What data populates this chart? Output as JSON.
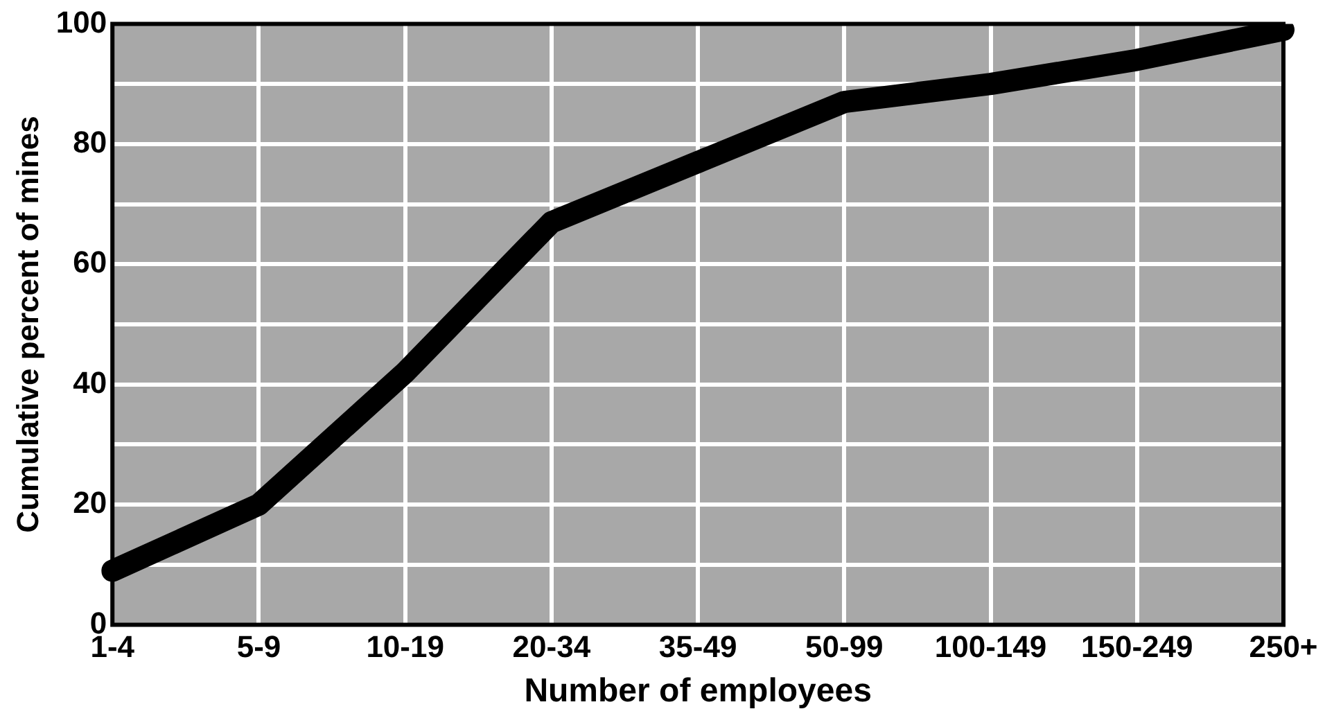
{
  "chart_data": {
    "type": "line",
    "xlabel": "Number of employees",
    "ylabel": "Cumulative percent of mines",
    "categories": [
      "1-4",
      "5-9",
      "10-19",
      "20-34",
      "35-49",
      "50-99",
      "100-149",
      "150-249",
      "250+"
    ],
    "series": [
      {
        "color": "#000000",
        "values": [
          9,
          20,
          42,
          67,
          77,
          87,
          90,
          94,
          99
        ]
      }
    ],
    "ylim": [
      0,
      100
    ],
    "yticks": [
      0,
      {
        "value": 10,
        "label": null
      },
      20,
      {
        "value": 30,
        "label": null
      },
      40,
      {
        "value": 50,
        "label": null
      },
      60,
      {
        "value": 70,
        "label": null
      },
      80,
      {
        "value": 90,
        "label": null
      },
      100
    ],
    "grid": true,
    "legend": false,
    "marker": "none",
    "line_style": "solid"
  }
}
